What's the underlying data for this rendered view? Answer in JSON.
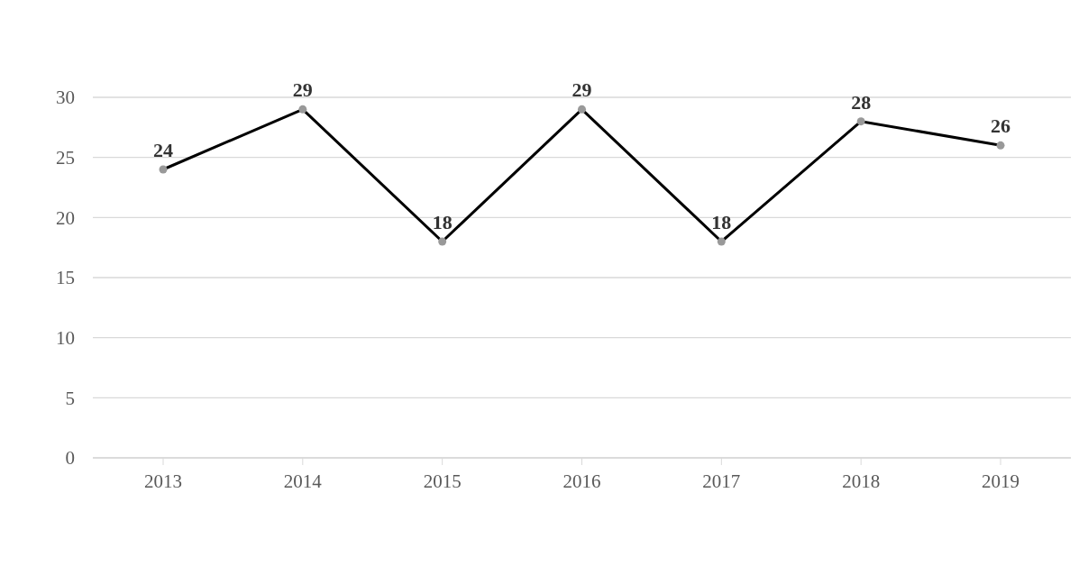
{
  "chart_data": {
    "type": "line",
    "categories": [
      "2013",
      "2014",
      "2015",
      "2016",
      "2017",
      "2018",
      "2019"
    ],
    "series": [
      {
        "color": "#000000",
        "values": [
          24,
          29,
          18,
          29,
          18,
          28,
          26
        ]
      }
    ],
    "ylim": [
      0,
      30
    ],
    "yticks": [
      0,
      5,
      10,
      15,
      20,
      25,
      30
    ],
    "grid": "y",
    "marker": "circle",
    "line_style": "solid",
    "data_labels": true,
    "legend": false
  }
}
